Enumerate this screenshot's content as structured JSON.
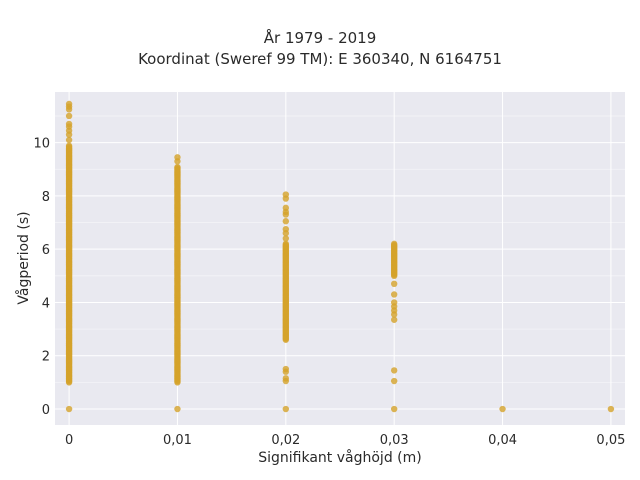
{
  "chart_data": {
    "type": "scatter",
    "title": "År 1979 - 2019",
    "subtitle": "Koordinat (Sweref 99 TM): E 360340, N 6164751",
    "xlabel": "Signifikant våghöjd (m)",
    "ylabel": "Vågperiod (s)",
    "xlim": [
      -0.0013,
      0.0513
    ],
    "ylim": [
      -0.6,
      11.9
    ],
    "x_ticks": [
      0,
      0.01,
      0.02,
      0.03,
      0.04,
      0.05
    ],
    "x_tick_labels": [
      "0",
      "0,01",
      "0,02",
      "0,03",
      "0,04",
      "0,05"
    ],
    "y_ticks": [
      0,
      2,
      4,
      6,
      8,
      10
    ],
    "y_tick_labels": [
      "0",
      "2",
      "4",
      "6",
      "8",
      "10"
    ],
    "grid": true,
    "legend": "none",
    "series": [
      {
        "color": "#d4a22a",
        "points": [
          {
            "x": 0,
            "y_min": 1.0,
            "y_max": 9.9
          },
          {
            "x": 0,
            "y": 0
          },
          {
            "x": 0,
            "y": 10.1
          },
          {
            "x": 0,
            "y": 10.3
          },
          {
            "x": 0,
            "y": 10.45
          },
          {
            "x": 0,
            "y": 10.6
          },
          {
            "x": 0,
            "y": 10.7
          },
          {
            "x": 0,
            "y": 11.0
          },
          {
            "x": 0,
            "y": 11.25
          },
          {
            "x": 0,
            "y": 11.35
          },
          {
            "x": 0,
            "y": 11.45
          },
          {
            "x": 0.01,
            "y_min": 1.0,
            "y_max": 9.1
          },
          {
            "x": 0.01,
            "y": 0
          },
          {
            "x": 0.01,
            "y": 9.3
          },
          {
            "x": 0.01,
            "y": 9.45
          },
          {
            "x": 0.02,
            "y_min": 2.6,
            "y_max": 6.2
          },
          {
            "x": 0.02,
            "y": 0
          },
          {
            "x": 0.02,
            "y": 1.05
          },
          {
            "x": 0.02,
            "y": 1.15
          },
          {
            "x": 0.02,
            "y": 1.4
          },
          {
            "x": 0.02,
            "y": 1.5
          },
          {
            "x": 0.02,
            "y": 6.4
          },
          {
            "x": 0.02,
            "y": 6.6
          },
          {
            "x": 0.02,
            "y": 6.75
          },
          {
            "x": 0.02,
            "y": 7.05
          },
          {
            "x": 0.02,
            "y": 7.3
          },
          {
            "x": 0.02,
            "y": 7.4
          },
          {
            "x": 0.02,
            "y": 7.55
          },
          {
            "x": 0.02,
            "y": 7.9
          },
          {
            "x": 0.02,
            "y": 8.05
          },
          {
            "x": 0.03,
            "y_min": 5.0,
            "y_max": 6.2
          },
          {
            "x": 0.03,
            "y": 0
          },
          {
            "x": 0.03,
            "y": 1.05
          },
          {
            "x": 0.03,
            "y": 1.45
          },
          {
            "x": 0.03,
            "y": 3.35
          },
          {
            "x": 0.03,
            "y": 3.55
          },
          {
            "x": 0.03,
            "y": 3.7
          },
          {
            "x": 0.03,
            "y": 3.85
          },
          {
            "x": 0.03,
            "y": 4.0
          },
          {
            "x": 0.03,
            "y": 4.3
          },
          {
            "x": 0.03,
            "y": 4.7
          },
          {
            "x": 0.04,
            "y": 0
          },
          {
            "x": 0.05,
            "y": 0
          }
        ]
      }
    ]
  }
}
